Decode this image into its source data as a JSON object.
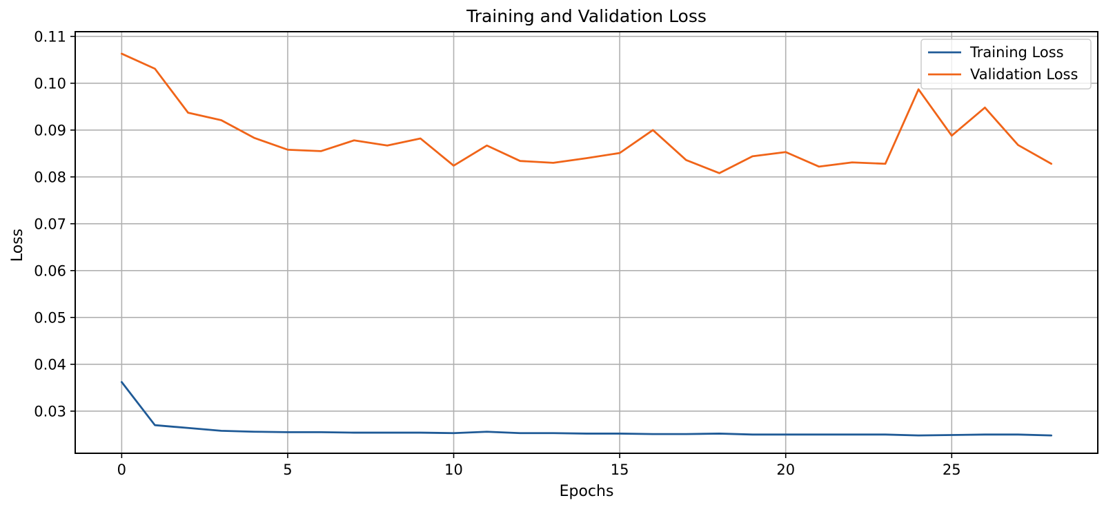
{
  "chart_data": {
    "type": "line",
    "title": "Training and Validation Loss",
    "xlabel": "Epochs",
    "ylabel": "Loss",
    "xlim": [
      -1.4,
      29.4
    ],
    "ylim": [
      0.021,
      0.111
    ],
    "xticks": [
      0,
      5,
      10,
      15,
      20,
      25
    ],
    "yticks": [
      0.03,
      0.04,
      0.05,
      0.06,
      0.07,
      0.08,
      0.09,
      0.1,
      0.11
    ],
    "ytick_labels": [
      "0.03",
      "0.04",
      "0.05",
      "0.06",
      "0.07",
      "0.08",
      "0.09",
      "0.10",
      "0.11"
    ],
    "grid": true,
    "legend_position": "top-right",
    "x": [
      0,
      1,
      2,
      3,
      4,
      5,
      6,
      7,
      8,
      9,
      10,
      11,
      12,
      13,
      14,
      15,
      16,
      17,
      18,
      19,
      20,
      21,
      22,
      23,
      24,
      25,
      26,
      27,
      28
    ],
    "series": [
      {
        "name": "Training Loss",
        "color": "#1f5a96",
        "values": [
          0.0362,
          0.027,
          0.0264,
          0.0258,
          0.0256,
          0.0255,
          0.0255,
          0.0254,
          0.0254,
          0.0254,
          0.0253,
          0.0256,
          0.0253,
          0.0253,
          0.0252,
          0.0252,
          0.0251,
          0.0251,
          0.0252,
          0.025,
          0.025,
          0.025,
          0.025,
          0.025,
          0.0248,
          0.0249,
          0.025,
          0.025,
          0.0248
        ]
      },
      {
        "name": "Validation Loss",
        "color": "#f06418",
        "values": [
          0.1063,
          0.1031,
          0.0937,
          0.0921,
          0.0883,
          0.0858,
          0.0855,
          0.0878,
          0.0867,
          0.0882,
          0.0824,
          0.0867,
          0.0834,
          0.083,
          0.084,
          0.0851,
          0.09,
          0.0836,
          0.0808,
          0.0844,
          0.0853,
          0.0822,
          0.0831,
          0.0828,
          0.0987,
          0.0888,
          0.0948,
          0.0868,
          0.0828
        ]
      }
    ]
  }
}
